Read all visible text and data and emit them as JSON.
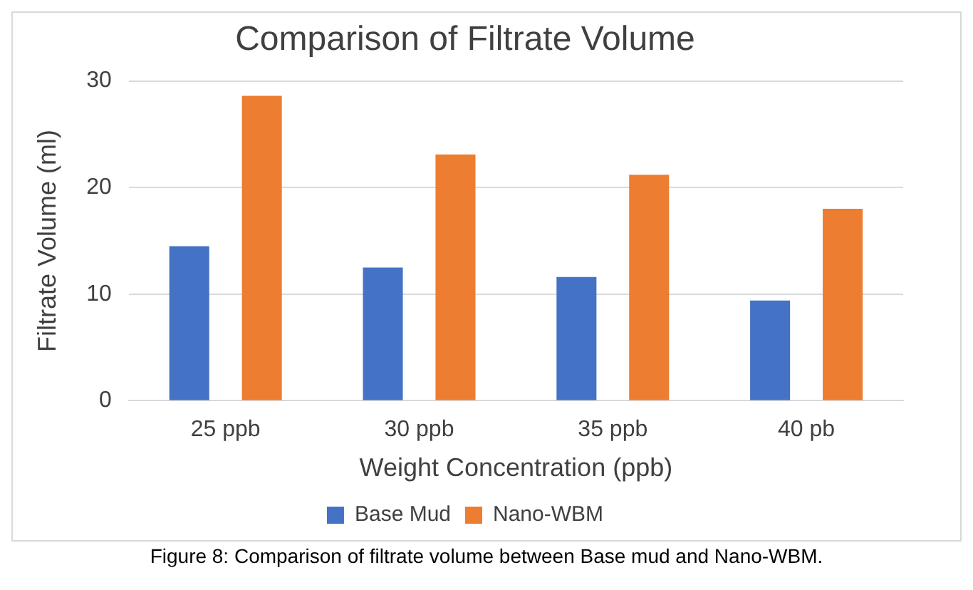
{
  "chart_data": {
    "type": "bar",
    "title": "Comparison of Filtrate Volume",
    "xlabel": "Weight Concentration (ppb)",
    "ylabel": "Filtrate Volume (ml)",
    "categories": [
      "25 ppb",
      "30 ppb",
      "35 ppb",
      "40 pb"
    ],
    "series": [
      {
        "name": "Base Mud",
        "color": "#4472c4",
        "values": [
          14.5,
          12.5,
          11.6,
          9.4
        ]
      },
      {
        "name": "Nano-WBM",
        "color": "#ed7d31",
        "values": [
          28.6,
          23.1,
          21.2,
          18.0
        ]
      }
    ],
    "ylim": [
      0,
      30
    ],
    "yticks": [
      0,
      10,
      20,
      30
    ],
    "grid": "y",
    "legend": "bottom",
    "annotations": [
      "Figure 8: Comparison of filtrate volume between Base mud and Nano-WBM."
    ]
  }
}
